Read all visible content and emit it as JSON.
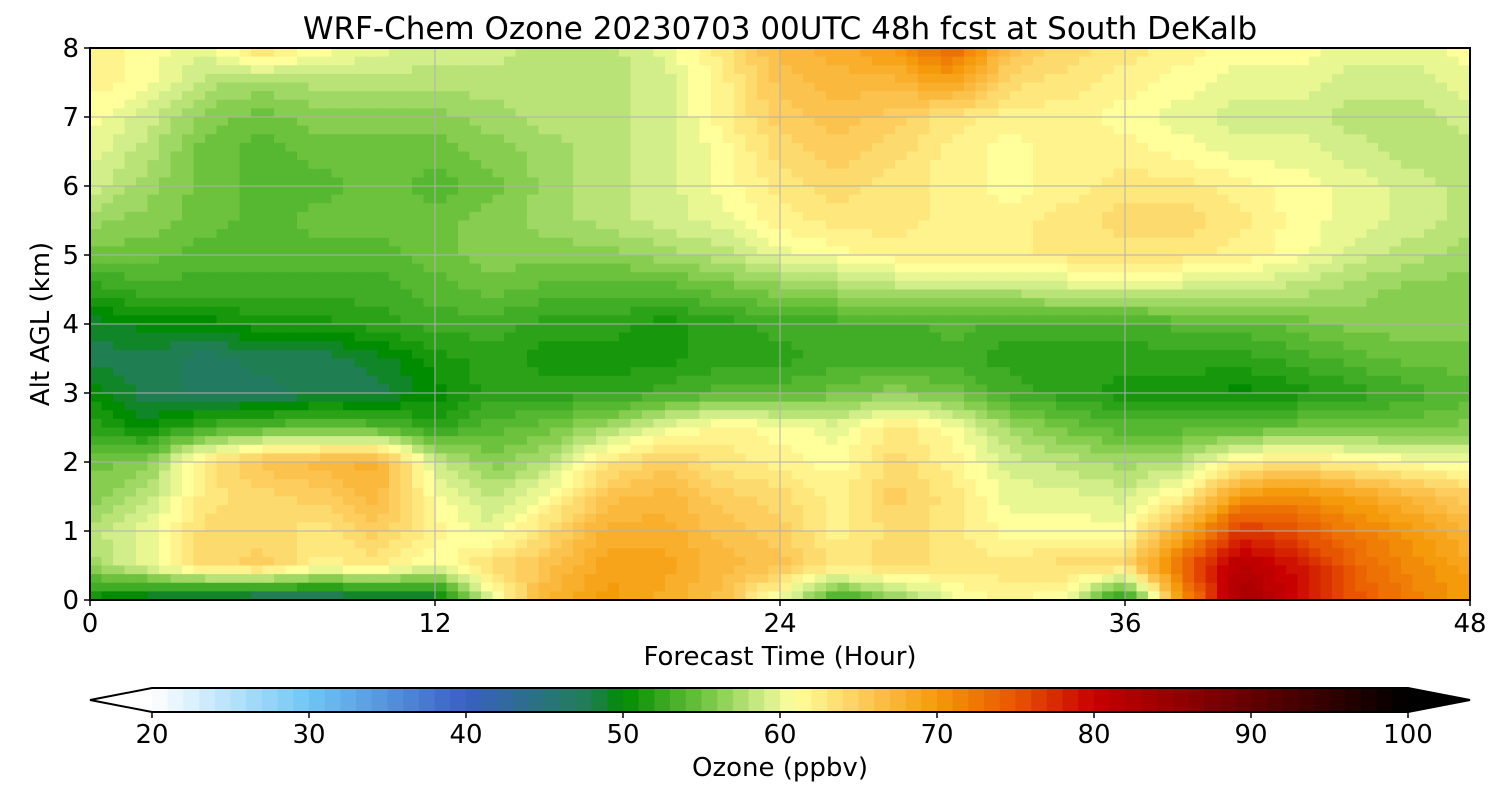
{
  "chart_data": {
    "type": "heatmap",
    "title": "WRF-Chem Ozone  20230703 00UTC 48h fcst at South DeKalb",
    "xlabel": "Forecast Time (Hour)",
    "ylabel": "Alt AGL (km)",
    "xlim": [
      0,
      48
    ],
    "ylim": [
      0,
      8
    ],
    "xticks": [
      0,
      12,
      24,
      36,
      48
    ],
    "yticks": [
      0,
      1,
      2,
      3,
      4,
      5,
      6,
      7,
      8
    ],
    "grid": true,
    "x": [
      0,
      2,
      4,
      6,
      8,
      10,
      12,
      14,
      16,
      18,
      20,
      22,
      24,
      26,
      28,
      30,
      32,
      34,
      36,
      38,
      40,
      42,
      44,
      46,
      48
    ],
    "y": [
      0,
      0.5,
      1,
      1.5,
      2,
      2.5,
      3,
      3.5,
      4,
      4.5,
      5,
      5.5,
      6,
      6.5,
      7,
      7.5,
      8
    ],
    "z": [
      [
        50,
        48,
        47,
        46,
        46,
        47,
        48,
        60,
        68,
        70,
        68,
        66,
        60,
        52,
        56,
        60,
        62,
        60,
        50,
        70,
        84,
        80,
        75,
        72,
        70
      ],
      [
        57,
        60,
        64,
        65,
        62,
        63,
        60,
        64,
        66,
        69,
        69,
        67,
        66,
        63,
        64,
        63,
        63,
        64,
        64,
        74,
        82,
        79,
        74,
        71,
        69
      ],
      [
        58,
        60,
        64,
        64,
        63,
        65,
        62,
        60,
        64,
        68,
        68,
        66,
        65,
        62,
        64,
        63,
        61,
        61,
        61,
        68,
        77,
        75,
        72,
        70,
        67
      ],
      [
        56,
        58,
        63,
        64,
        65,
        67,
        61,
        58,
        61,
        66,
        67,
        65,
        64,
        62,
        65,
        63,
        60,
        60,
        59,
        62,
        70,
        71,
        69,
        67,
        65
      ],
      [
        55,
        56,
        63,
        66,
        67,
        68,
        59,
        56,
        58,
        63,
        65,
        63,
        62,
        61,
        64,
        62,
        59,
        58,
        57,
        58,
        62,
        63,
        62,
        61,
        60
      ],
      [
        52,
        50,
        53,
        54,
        55,
        54,
        52,
        54,
        55,
        57,
        60,
        62,
        61,
        60,
        63,
        61,
        57,
        55,
        54,
        54,
        54,
        55,
        55,
        55,
        56
      ],
      [
        50,
        48,
        47,
        47,
        48,
        48,
        50,
        52,
        52,
        52,
        53,
        54,
        54,
        55,
        56,
        55,
        53,
        52,
        51,
        51,
        50,
        51,
        52,
        53,
        54
      ],
      [
        48,
        48,
        47,
        48,
        48,
        49,
        51,
        52,
        51,
        51,
        51,
        52,
        52,
        53,
        53,
        53,
        52,
        52,
        52,
        52,
        52,
        53,
        54,
        55,
        55
      ],
      [
        49,
        50,
        50,
        51,
        51,
        52,
        53,
        53,
        52,
        52,
        51,
        52,
        53,
        53,
        53,
        54,
        53,
        53,
        53,
        54,
        54,
        55,
        56,
        56,
        56
      ],
      [
        52,
        53,
        53,
        53,
        53,
        53,
        54,
        55,
        54,
        54,
        54,
        55,
        56,
        57,
        58,
        58,
        58,
        59,
        59,
        59,
        59,
        58,
        57,
        56,
        56
      ],
      [
        55,
        55,
        54,
        54,
        54,
        54,
        55,
        56,
        56,
        56,
        57,
        58,
        60,
        61,
        62,
        62,
        62,
        63,
        63,
        63,
        62,
        61,
        59,
        58,
        57
      ],
      [
        57,
        56,
        55,
        54,
        55,
        55,
        55,
        56,
        57,
        58,
        59,
        60,
        62,
        63,
        63,
        62,
        62,
        63,
        64,
        64,
        63,
        61,
        60,
        59,
        58
      ],
      [
        59,
        57,
        55,
        54,
        54,
        55,
        54,
        55,
        57,
        58,
        59,
        61,
        63,
        64,
        63,
        62,
        61,
        62,
        63,
        63,
        62,
        61,
        60,
        59,
        58
      ],
      [
        60,
        58,
        55,
        54,
        55,
        55,
        55,
        56,
        57,
        58,
        59,
        61,
        64,
        65,
        64,
        62,
        61,
        62,
        62,
        61,
        60,
        60,
        59,
        58,
        58
      ],
      [
        61,
        59,
        56,
        55,
        56,
        56,
        56,
        57,
        58,
        58,
        59,
        62,
        65,
        66,
        65,
        63,
        62,
        62,
        61,
        60,
        59,
        59,
        58,
        58,
        59
      ],
      [
        62,
        61,
        58,
        57,
        58,
        58,
        58,
        58,
        58,
        58,
        59,
        62,
        66,
        67,
        67,
        69,
        64,
        63,
        62,
        61,
        60,
        60,
        59,
        59,
        60
      ],
      [
        62,
        61,
        60,
        64,
        61,
        60,
        59,
        59,
        58,
        58,
        60,
        63,
        67,
        68,
        70,
        74,
        66,
        64,
        63,
        62,
        61,
        61,
        60,
        60,
        61
      ]
    ],
    "colorbar": {
      "label": "Ozone  (ppbv)",
      "min": 20,
      "max": 100,
      "ticks": [
        20,
        30,
        40,
        50,
        60,
        70,
        80,
        90,
        100
      ],
      "extend": "both",
      "stops": [
        [
          20,
          "#ffffff"
        ],
        [
          30,
          "#6fc6f5"
        ],
        [
          40,
          "#3a5fc4"
        ],
        [
          48,
          "#1f7f52"
        ],
        [
          50,
          "#008c00"
        ],
        [
          55,
          "#6cc23d"
        ],
        [
          59,
          "#d2ee8a"
        ],
        [
          61,
          "#ffff9c"
        ],
        [
          66,
          "#fcc24e"
        ],
        [
          70,
          "#f59a0a"
        ],
        [
          75,
          "#e85500"
        ],
        [
          80,
          "#c80000"
        ],
        [
          88,
          "#780000"
        ],
        [
          100,
          "#000000"
        ]
      ]
    }
  }
}
